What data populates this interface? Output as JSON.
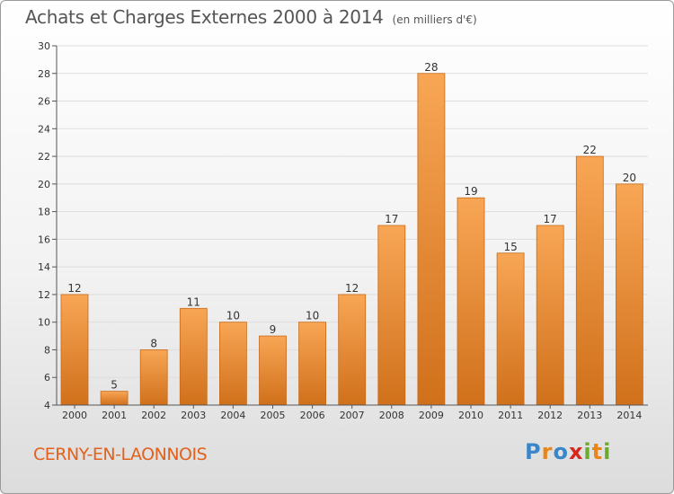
{
  "header": {
    "title": "Achats et Charges Externes 2000 à 2014",
    "unit": "(en milliers d'€)"
  },
  "footer": {
    "place": "CERNY-EN-LAONNOIS",
    "logo": {
      "letters": [
        "P",
        "r",
        "o",
        "x",
        "i",
        "t",
        "i"
      ],
      "colors": [
        "#3a86c8",
        "#e8861c",
        "#3a86c8",
        "#d8261f",
        "#6aab2e",
        "#e8861c",
        "#6aab2e"
      ]
    }
  },
  "colors": {
    "bar_light": "#f8a655",
    "bar_dark": "#d0701b",
    "bar_edge": "#c96a18",
    "axis": "#555555",
    "grid": "#dddddd",
    "text": "#333333"
  },
  "chart_data": {
    "type": "bar",
    "categories": [
      "2000",
      "2001",
      "2002",
      "2003",
      "2004",
      "2005",
      "2006",
      "2007",
      "2008",
      "2009",
      "2010",
      "2011",
      "2012",
      "2013",
      "2014"
    ],
    "values": [
      12,
      5,
      8,
      11,
      10,
      9,
      10,
      12,
      17,
      28,
      19,
      15,
      17,
      22,
      20
    ],
    "data_labels": [
      "12",
      "5",
      "8",
      "11",
      "10",
      "9",
      "10",
      "12",
      "17",
      "28",
      "19",
      "15",
      "17",
      "22",
      "20"
    ],
    "yticks": [
      4,
      6,
      8,
      10,
      12,
      14,
      16,
      18,
      20,
      22,
      24,
      26,
      28,
      30
    ],
    "ylim": [
      4,
      30
    ],
    "grid": true,
    "xlabel": "",
    "ylabel": ""
  }
}
